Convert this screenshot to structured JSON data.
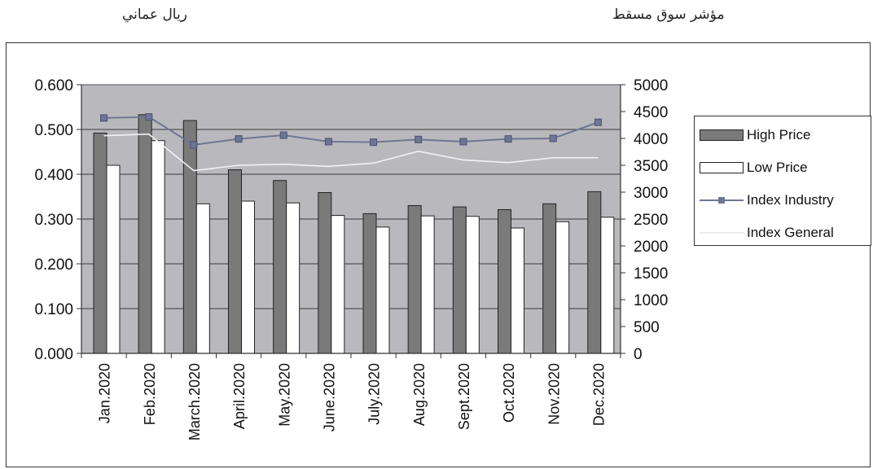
{
  "header": {
    "left_unit": "ريال عماني",
    "right_title": "مؤشر سوق مسقط"
  },
  "chart_data": {
    "type": "bar",
    "categories": [
      "Jan.2020",
      "Feb.2020",
      "March.2020",
      "April.2020",
      "May.2020",
      "June.2020",
      "July.2020",
      "Aug.2020",
      "Sept.2020",
      "Oct.2020",
      "Nov.2020",
      "Dec.2020"
    ],
    "series": [
      {
        "name": "High Price",
        "type": "bar",
        "axis": "left",
        "color": "#7a7a7a",
        "values": [
          0.492,
          0.533,
          0.52,
          0.41,
          0.386,
          0.359,
          0.312,
          0.33,
          0.327,
          0.321,
          0.334,
          0.361
        ]
      },
      {
        "name": "Low Price",
        "type": "bar",
        "axis": "left",
        "color": "#ffffff",
        "values": [
          0.42,
          0.475,
          0.334,
          0.34,
          0.336,
          0.308,
          0.282,
          0.307,
          0.306,
          0.28,
          0.294,
          0.304
        ]
      },
      {
        "name": "Index Industry",
        "type": "line",
        "axis": "right",
        "color": "#6f7694",
        "values": [
          4380,
          4400,
          3880,
          3990,
          4060,
          3940,
          3930,
          3980,
          3940,
          3990,
          4000,
          4300
        ]
      },
      {
        "name": "Index General",
        "type": "line",
        "axis": "right",
        "color": "#f2f2f2",
        "values": [
          4050,
          4080,
          3400,
          3500,
          3520,
          3480,
          3540,
          3760,
          3600,
          3550,
          3640,
          3640
        ]
      }
    ],
    "left_axis": {
      "min": 0,
      "max": 0.6,
      "ticks": [
        "0.000",
        "0.100",
        "0.200",
        "0.300",
        "0.400",
        "0.500",
        "0.600"
      ]
    },
    "right_axis": {
      "min": 0,
      "max": 5000,
      "ticks": [
        "0",
        "500",
        "1000",
        "1500",
        "2000",
        "2500",
        "3000",
        "3500",
        "4000",
        "4500",
        "5000"
      ]
    },
    "grid": true,
    "legend_position": "right"
  }
}
